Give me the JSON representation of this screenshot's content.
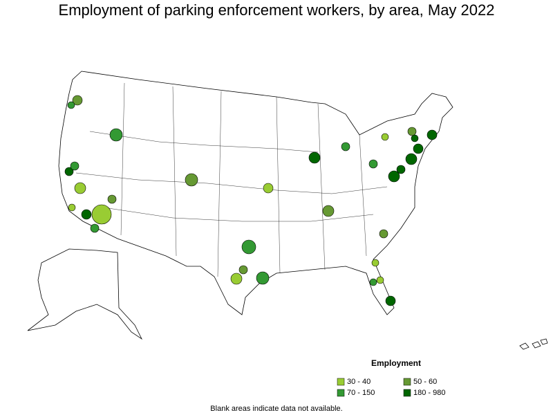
{
  "title": "Employment of parking enforcement workers, by area, May 2022",
  "legend": {
    "title": "Employment",
    "items": [
      {
        "label": "30 - 40",
        "color": "#99cc33"
      },
      {
        "label": "50 - 60",
        "color": "#669933"
      },
      {
        "label": "70 - 150",
        "color": "#339933"
      },
      {
        "label": "180 - 980",
        "color": "#006600"
      }
    ]
  },
  "note": "Blank areas indicate data not available."
}
